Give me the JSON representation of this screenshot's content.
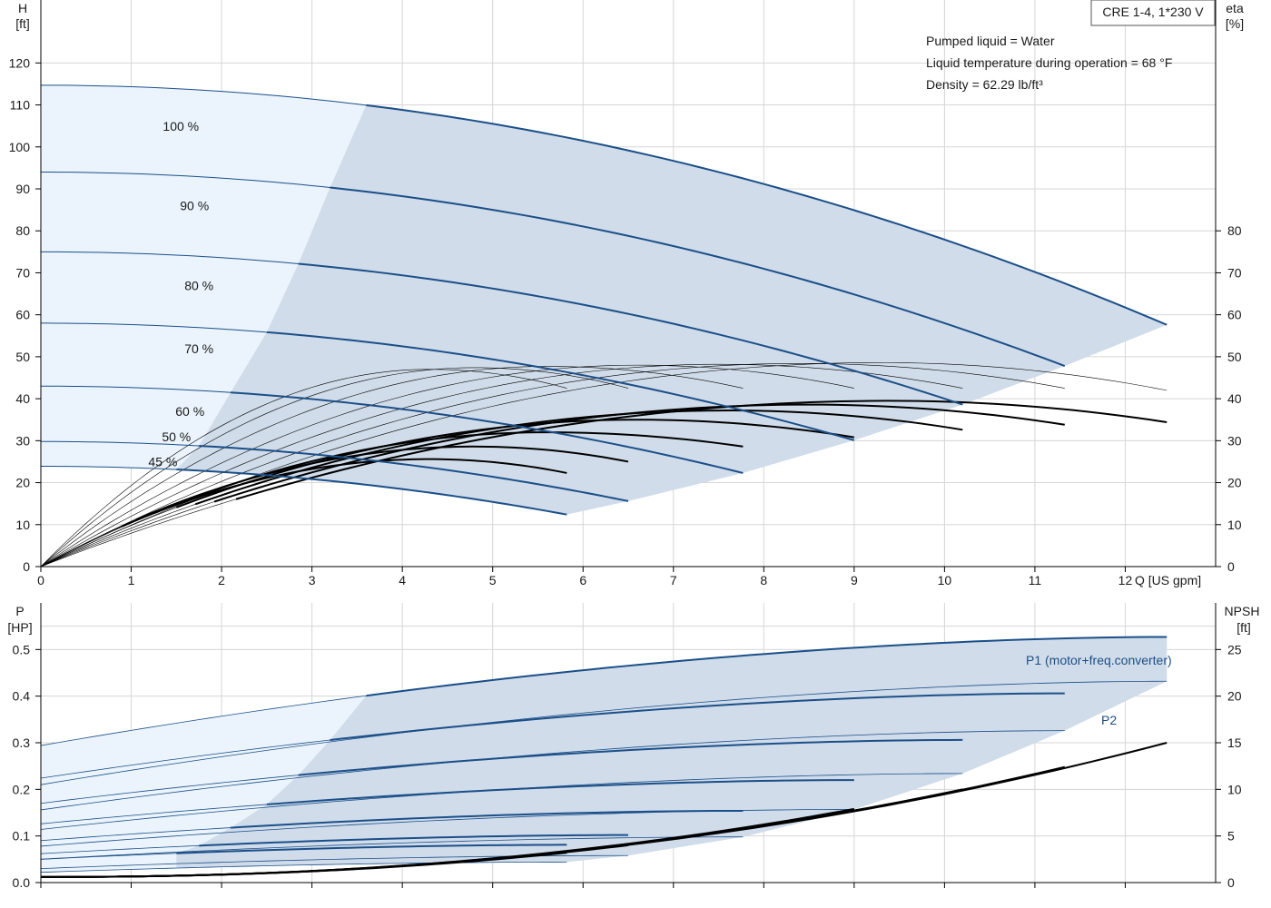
{
  "pump_label": "CRE 1-4, 1*230 V",
  "conditions": [
    "Pumped liquid = Water",
    "Liquid temperature during operation = 68 °F",
    "Density = 62.29 lb/ft³"
  ],
  "colors": {
    "curve_blue": "#1b4f88",
    "area_dark": "#d0dcea",
    "area_light": "#ebf4fc",
    "grid": "#d6d6d6"
  },
  "chart_data": [
    {
      "type": "line",
      "name": "QH / efficiency",
      "x_axis": {
        "label": "Q [US gpm]",
        "range": [
          0,
          13
        ],
        "ticks": [
          0,
          1,
          2,
          3,
          4,
          5,
          6,
          7,
          8,
          9,
          10,
          11,
          12
        ]
      },
      "y_left": {
        "label_top": "H",
        "label_unit": "[ft]",
        "range": [
          0,
          135
        ],
        "ticks": [
          0,
          10,
          20,
          30,
          40,
          50,
          60,
          70,
          80,
          90,
          100,
          110,
          120
        ]
      },
      "y_right": {
        "label_top": "eta",
        "label_unit": "[%]",
        "range": [
          0,
          135
        ],
        "ticks": [
          0,
          10,
          20,
          30,
          40,
          50,
          60,
          70,
          80
        ]
      },
      "speed_curves": [
        {
          "label": "100 %",
          "shut_off_head": 114.7,
          "q_max": 12.46,
          "h_end": 57.6,
          "show_label": true
        },
        {
          "label": "90 %",
          "shut_off_head": 94.0,
          "q_max": 11.33,
          "h_end": 47.8,
          "show_label": true
        },
        {
          "label": "80 %",
          "shut_off_head": 75.0,
          "q_max": 10.2,
          "h_end": 38.6,
          "show_label": true
        },
        {
          "label": "70 %",
          "shut_off_head": 58.0,
          "q_max": 9.0,
          "h_end": 30.1,
          "show_label": true
        },
        {
          "label": "60 %",
          "shut_off_head": 43.0,
          "q_max": 7.77,
          "h_end": 22.3,
          "show_label": true
        },
        {
          "label": "50 %",
          "shut_off_head": 29.8,
          "q_max": 6.5,
          "h_end": 15.6,
          "show_label": true
        },
        {
          "label": "45 %",
          "shut_off_head": 23.9,
          "q_max": 5.82,
          "h_end": 12.4,
          "show_label": true
        }
      ],
      "efficiency_peaks": [
        {
          "speed": "100 %",
          "q_peak": 9.4,
          "eta_peak": 39.5,
          "q_end": 12.46,
          "eta_end": 34.4
        },
        {
          "speed": "90 %",
          "q_peak": 8.5,
          "eta_peak": 38.6,
          "q_end": 11.33,
          "eta_end": 33.8
        },
        {
          "speed": "80 %",
          "q_peak": 7.6,
          "eta_peak": 37.2,
          "q_end": 10.2,
          "eta_end": 32.6
        },
        {
          "speed": "70 %",
          "q_peak": 6.6,
          "eta_peak": 35.0,
          "q_end": 9.0,
          "eta_end": 30.8
        },
        {
          "speed": "60 %",
          "q_peak": 5.6,
          "eta_peak": 32.0,
          "q_end": 7.77,
          "eta_end": 28.6
        },
        {
          "speed": "50 %",
          "q_peak": 4.8,
          "eta_peak": 28.6,
          "q_end": 6.5,
          "eta_end": 25.0
        },
        {
          "speed": "45 %",
          "q_peak": 4.3,
          "eta_peak": 25.6,
          "q_end": 5.82,
          "eta_end": 22.3
        }
      ],
      "thin_efficiency_ends": [
        12.46,
        11.33,
        10.2,
        9.0,
        7.77,
        6.5,
        5.82
      ]
    },
    {
      "type": "line",
      "name": "Power / NPSH",
      "x_axis": {
        "range": [
          0,
          13
        ]
      },
      "y_left": {
        "label_top": "P",
        "label_unit": "[HP]",
        "range": [
          0,
          0.6
        ],
        "ticks": [
          0.0,
          0.1,
          0.2,
          0.3,
          0.4,
          0.5
        ]
      },
      "y_right": {
        "label_top": "NPSH",
        "label_unit": "[ft]",
        "range": [
          0,
          30
        ],
        "ticks": [
          0,
          5,
          10,
          15,
          20,
          25
        ]
      },
      "series_labels": {
        "p1": "P1 (motor+freq.converter)",
        "p2": "P2"
      },
      "p1_curves": [
        {
          "start": 0.294,
          "end": 0.527,
          "q_max": 12.46
        },
        {
          "start": 0.224,
          "end": 0.406,
          "q_max": 11.33
        },
        {
          "start": 0.17,
          "end": 0.306,
          "q_max": 10.2
        },
        {
          "start": 0.126,
          "end": 0.22,
          "q_max": 9.0
        },
        {
          "start": 0.09,
          "end": 0.154,
          "q_max": 7.77
        },
        {
          "start": 0.062,
          "end": 0.102,
          "q_max": 6.5
        },
        {
          "start": 0.05,
          "end": 0.081,
          "q_max": 5.82
        }
      ],
      "p2_curves": [
        {
          "start": 0.21,
          "end": 0.432,
          "q_max": 12.46
        },
        {
          "start": 0.156,
          "end": 0.326,
          "q_max": 11.33
        },
        {
          "start": 0.114,
          "end": 0.234,
          "q_max": 10.2
        },
        {
          "start": 0.078,
          "end": 0.157,
          "q_max": 9.0
        },
        {
          "start": 0.05,
          "end": 0.098,
          "q_max": 7.77
        },
        {
          "start": 0.03,
          "end": 0.058,
          "q_max": 6.5
        },
        {
          "start": 0.022,
          "end": 0.044,
          "q_max": 5.82
        }
      ],
      "npsh_curves": [
        {
          "q_max": 12.46,
          "npsh_end": 15.0
        },
        {
          "q_max": 11.33,
          "npsh_end": 12.4
        },
        {
          "q_max": 10.2,
          "npsh_end": 10.0
        },
        {
          "q_max": 9.0,
          "npsh_end": 7.9
        },
        {
          "q_max": 7.77,
          "npsh_end": 5.8
        },
        {
          "q_max": 6.5,
          "npsh_end": 4.0
        },
        {
          "q_max": 5.82,
          "npsh_end": 3.2
        }
      ]
    }
  ]
}
